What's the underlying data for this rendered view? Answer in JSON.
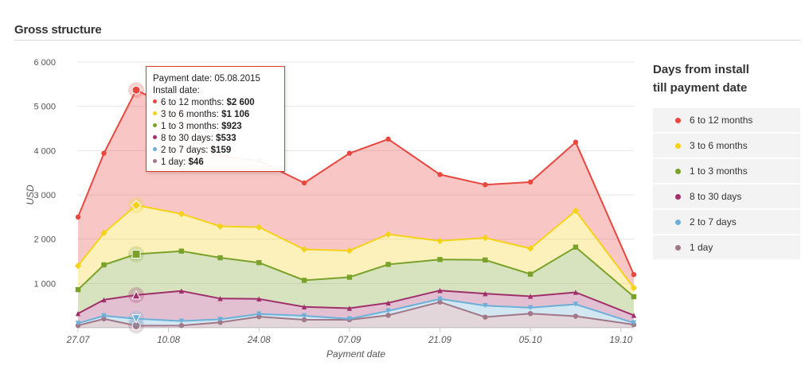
{
  "page": {
    "title": "Gross structure"
  },
  "legend": {
    "title_line1": "Days from install",
    "title_line2": "till payment date",
    "items": [
      {
        "label": "6 to 12 months",
        "color": "#e8473f"
      },
      {
        "label": "3 to 6 months",
        "color": "#f5d21a"
      },
      {
        "label": "1 to 3 months",
        "color": "#7aa22a"
      },
      {
        "label": "8 to 30 days",
        "color": "#a0306a"
      },
      {
        "label": "2 to 7 days",
        "color": "#6cb0d8"
      },
      {
        "label": "1 day",
        "color": "#a07888"
      }
    ]
  },
  "tooltip": {
    "header": "Payment date: 05.08.2015",
    "subheader": "Install date:",
    "rows": [
      {
        "label": "6 to 12 months: ",
        "value": "$2 600",
        "color": "#e8473f"
      },
      {
        "label": "3 to 6 months: ",
        "value": "$1 106",
        "color": "#f5d21a"
      },
      {
        "label": "1 to 3 months: ",
        "value": "$923",
        "color": "#7aa22a"
      },
      {
        "label": "8 to 30 days: ",
        "value": "$533",
        "color": "#a0306a"
      },
      {
        "label": "2 to 7 days: ",
        "value": "$159",
        "color": "#6cb0d8"
      },
      {
        "label": "1 day: ",
        "value": "$46",
        "color": "#a07888"
      }
    ]
  },
  "chart_data": {
    "type": "area",
    "stacked": true,
    "ylabel": "USD",
    "xlabel": "Payment date",
    "ylim": [
      0,
      6000
    ],
    "yticks": [
      1000,
      2000,
      3000,
      4000,
      5000,
      6000
    ],
    "ytick_labels": [
      "1 000",
      "2 000",
      "3 000",
      "4 000",
      "5 000",
      "6 000"
    ],
    "xlim": [
      "2015-07-27",
      "2015-10-21"
    ],
    "xticks": [
      "2015-07-27",
      "2015-08-10",
      "2015-08-24",
      "2015-09-07",
      "2015-09-21",
      "2015-10-05",
      "2015-10-19"
    ],
    "xtick_labels": [
      "27.07",
      "10.08",
      "24.08",
      "07.09",
      "21.09",
      "05.10",
      "19.10"
    ],
    "grid": "horizontal",
    "x": [
      "2015-07-27",
      "2015-07-31",
      "2015-08-05",
      "2015-08-12",
      "2015-08-18",
      "2015-08-24",
      "2015-08-31",
      "2015-09-07",
      "2015-09-13",
      "2015-09-21",
      "2015-09-28",
      "2015-10-05",
      "2015-10-12",
      "2015-10-21"
    ],
    "highlight_x": "2015-08-05",
    "series": [
      {
        "name": "1 day",
        "color": "#a07888",
        "marker": "circle",
        "values": [
          50,
          200,
          46,
          50,
          120,
          250,
          180,
          180,
          280,
          580,
          240,
          320,
          260,
          70
        ]
      },
      {
        "name": "2 to 7 days",
        "color": "#6cb0d8",
        "marker": "triangle-down",
        "values": [
          50,
          70,
          159,
          100,
          70,
          60,
          90,
          20,
          100,
          70,
          260,
          130,
          270,
          40
        ]
      },
      {
        "name": "8 to 30 days",
        "color": "#a0306a",
        "marker": "triangle",
        "values": [
          220,
          360,
          533,
          680,
          470,
          340,
          200,
          240,
          180,
          190,
          270,
          260,
          270,
          170
        ]
      },
      {
        "name": "1 to 3 months",
        "color": "#7aa22a",
        "marker": "square",
        "values": [
          540,
          790,
          923,
          900,
          920,
          820,
          600,
          700,
          870,
          700,
          760,
          500,
          1020,
          420
        ]
      },
      {
        "name": "3 to 6 months",
        "color": "#f5d21a",
        "marker": "diamond",
        "values": [
          540,
          720,
          1106,
          840,
          710,
          800,
          700,
          600,
          680,
          420,
          500,
          580,
          820,
          200
        ]
      },
      {
        "name": "6 to 12 months",
        "color": "#e8473f",
        "marker": "circle",
        "values": [
          1100,
          1800,
          2600,
          2300,
          1600,
          1500,
          1500,
          2200,
          2150,
          1500,
          1200,
          1500,
          1550,
          300
        ]
      }
    ]
  }
}
